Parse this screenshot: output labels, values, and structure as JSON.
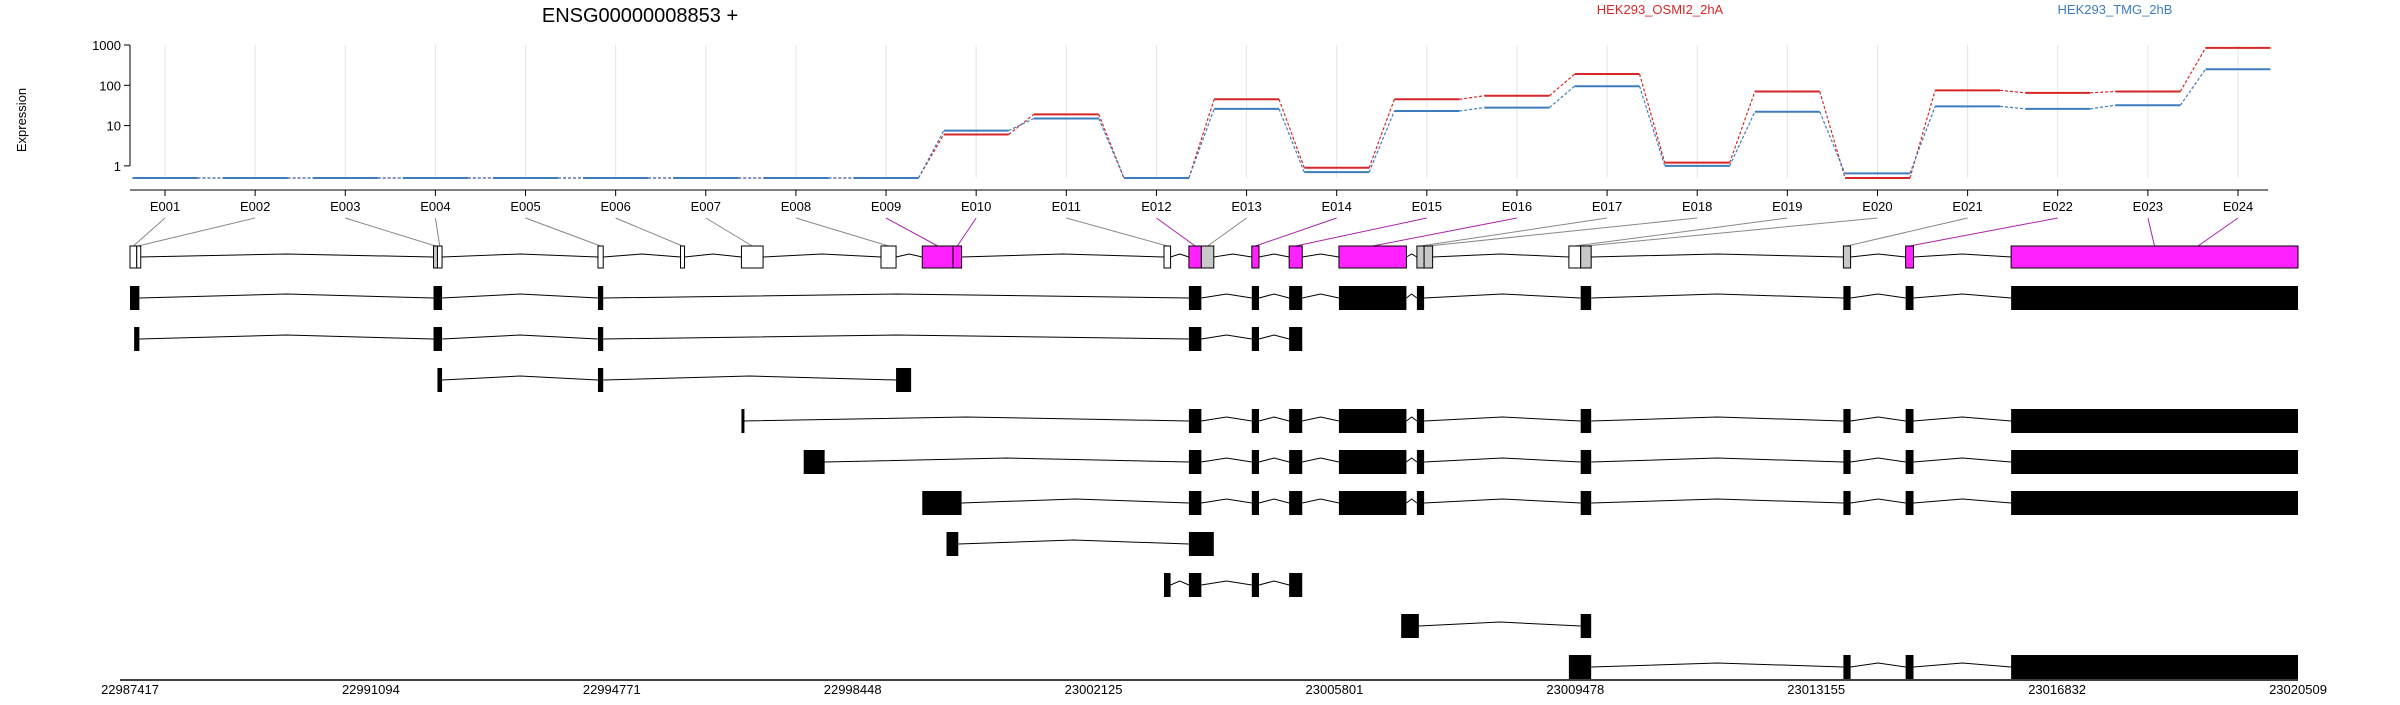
{
  "title": "ENSG00000008853 +",
  "ylabel": "Expression",
  "colors": {
    "series_a": "#d62728",
    "series_b": "#3e7dbd",
    "significant_exon": "#ff22ff",
    "nonsig_exon": "#ffffff",
    "partial_exon": "#c8c8c8",
    "transcript_exon": "#000000",
    "link_grey": "#888888",
    "link_magenta": "#aa22aa"
  },
  "chart_data": {
    "type": "line",
    "scale": "log",
    "ylim": [
      0.5,
      1000
    ],
    "yticks": [
      "1",
      "10",
      "100",
      "1000"
    ],
    "grid": true,
    "legend_placement": "top",
    "categories": [
      "E001",
      "E002",
      "E003",
      "E004",
      "E005",
      "E006",
      "E007",
      "E008",
      "E009",
      "E010",
      "E011",
      "E012",
      "E013",
      "E014",
      "E015",
      "E016",
      "E017",
      "E018",
      "E019",
      "E020",
      "E021",
      "E022",
      "E023",
      "E024"
    ],
    "series": [
      {
        "name": "HEK293_OSMI2_2hA",
        "color": "#d62728",
        "values": [
          0.5,
          0.5,
          0.5,
          0.5,
          0.5,
          0.5,
          0.5,
          0.5,
          0.5,
          6,
          19,
          0.5,
          45,
          0.9,
          45,
          55,
          190,
          1.2,
          70,
          0.5,
          75,
          65,
          70,
          850
        ]
      },
      {
        "name": "HEK293_TMG_2hB",
        "color": "#3e7dbd",
        "values": [
          0.5,
          0.5,
          0.5,
          0.5,
          0.5,
          0.5,
          0.5,
          0.5,
          0.5,
          7.5,
          15,
          0.5,
          26,
          0.7,
          23,
          28,
          95,
          1.0,
          22,
          0.65,
          30,
          26,
          32,
          250
        ]
      }
    ],
    "genome": {
      "xlim": [
        22987417,
        23020509
      ],
      "ticks": [
        "22987417",
        "22991094",
        "22994771",
        "22998448",
        "23002125",
        "23005801",
        "23009478",
        "23013155",
        "23016832",
        "23020509"
      ]
    },
    "exons": [
      {
        "id": "E001",
        "start": 22987417,
        "end": 22987520,
        "status": "nonsig"
      },
      {
        "id": "E002",
        "start": 22987520,
        "end": 22987560,
        "status": "nonsig"
      },
      {
        "id": "E003",
        "start": 22992050,
        "end": 22992110,
        "status": "partial"
      },
      {
        "id": "E004",
        "start": 22992110,
        "end": 22992180,
        "status": "nonsig"
      },
      {
        "id": "E005",
        "start": 22994560,
        "end": 22994640,
        "status": "nonsig"
      },
      {
        "id": "E006",
        "start": 22995820,
        "end": 22995880,
        "status": "nonsig"
      },
      {
        "id": "E007",
        "start": 22996750,
        "end": 22997080,
        "status": "nonsig"
      },
      {
        "id": "E008",
        "start": 22998880,
        "end": 22999110,
        "status": "nonsig"
      },
      {
        "id": "E009",
        "start": 22999510,
        "end": 22999980,
        "status": "significant"
      },
      {
        "id": "E010",
        "start": 22999980,
        "end": 23000110,
        "status": "significant"
      },
      {
        "id": "E011",
        "start": 23003200,
        "end": 23003300,
        "status": "nonsig"
      },
      {
        "id": "E012",
        "start": 23003580,
        "end": 23003770,
        "status": "significant"
      },
      {
        "id": "E013",
        "start": 23003770,
        "end": 23003960,
        "status": "partial"
      },
      {
        "id": "E014",
        "start": 23004540,
        "end": 23004650,
        "status": "significant"
      },
      {
        "id": "E015",
        "start": 23005110,
        "end": 23005310,
        "status": "significant"
      },
      {
        "id": "E016",
        "start": 23005870,
        "end": 23006900,
        "status": "significant"
      },
      {
        "id": "E017",
        "start": 23007060,
        "end": 23007170,
        "status": "partial"
      },
      {
        "id": "E018",
        "start": 23007170,
        "end": 23007300,
        "status": "partial"
      },
      {
        "id": "E019",
        "start": 23009380,
        "end": 23009560,
        "status": "nonsig"
      },
      {
        "id": "E020",
        "start": 23009560,
        "end": 23009720,
        "status": "partial"
      },
      {
        "id": "E021",
        "start": 23013570,
        "end": 23013680,
        "status": "partial"
      },
      {
        "id": "E022",
        "start": 23014520,
        "end": 23014640,
        "status": "significant"
      },
      {
        "id": "E023",
        "start": 23016130,
        "end": 23020509,
        "status": "significant"
      },
      {
        "id": "E024",
        "start": 23020509,
        "end": 23020509,
        "status": "significant"
      }
    ],
    "transcripts": [
      [
        [
          22987417,
          22987560
        ],
        [
          22992050,
          22992180
        ],
        [
          22994560,
          22994640
        ],
        [
          23003580,
          23003770
        ],
        [
          23004540,
          23004650
        ],
        [
          23005110,
          23005310
        ],
        [
          23005870,
          23006900
        ],
        [
          23007060,
          23007170
        ],
        [
          23009560,
          23009720
        ],
        [
          23013570,
          23013680
        ],
        [
          23014520,
          23014640
        ],
        [
          23016130,
          23020509
        ]
      ],
      [
        [
          22987480,
          22987560
        ],
        [
          22992050,
          22992180
        ],
        [
          22994560,
          22994640
        ],
        [
          23003580,
          23003770
        ],
        [
          23004540,
          23004650
        ],
        [
          23005110,
          23005310
        ]
      ],
      [
        [
          22992110,
          22992180
        ],
        [
          22994560,
          22994640
        ],
        [
          22999110,
          22999340
        ]
      ],
      [
        [
          22996750,
          22996770
        ],
        [
          23003580,
          23003770
        ],
        [
          23004540,
          23004650
        ],
        [
          23005110,
          23005310
        ],
        [
          23005870,
          23006900
        ],
        [
          23007060,
          23007170
        ],
        [
          23009560,
          23009720
        ],
        [
          23013570,
          23013680
        ],
        [
          23014520,
          23014640
        ],
        [
          23016130,
          23020509
        ]
      ],
      [
        [
          22997700,
          22998020
        ],
        [
          23003580,
          23003770
        ],
        [
          23004540,
          23004650
        ],
        [
          23005110,
          23005310
        ],
        [
          23005870,
          23006900
        ],
        [
          23007060,
          23007170
        ],
        [
          23009560,
          23009720
        ],
        [
          23013570,
          23013680
        ],
        [
          23014520,
          23014640
        ],
        [
          23016130,
          23020509
        ]
      ],
      [
        [
          22999510,
          23000110
        ],
        [
          23003580,
          23003770
        ],
        [
          23004540,
          23004650
        ],
        [
          23005110,
          23005310
        ],
        [
          23005870,
          23006900
        ],
        [
          23007060,
          23007170
        ],
        [
          23009560,
          23009720
        ],
        [
          23013570,
          23013680
        ],
        [
          23014520,
          23014640
        ],
        [
          23016130,
          23020509
        ]
      ],
      [
        [
          22999880,
          23000060
        ],
        [
          23003580,
          23003960
        ]
      ],
      [
        [
          23003200,
          23003300
        ],
        [
          23003580,
          23003770
        ],
        [
          23004540,
          23004650
        ],
        [
          23005110,
          23005310
        ]
      ],
      [
        [
          23006820,
          23007090
        ],
        [
          23009560,
          23009720
        ]
      ],
      [
        [
          23009380,
          23009720
        ],
        [
          23013570,
          23013680
        ],
        [
          23014520,
          23014640
        ],
        [
          23016130,
          23020509
        ]
      ]
    ]
  }
}
